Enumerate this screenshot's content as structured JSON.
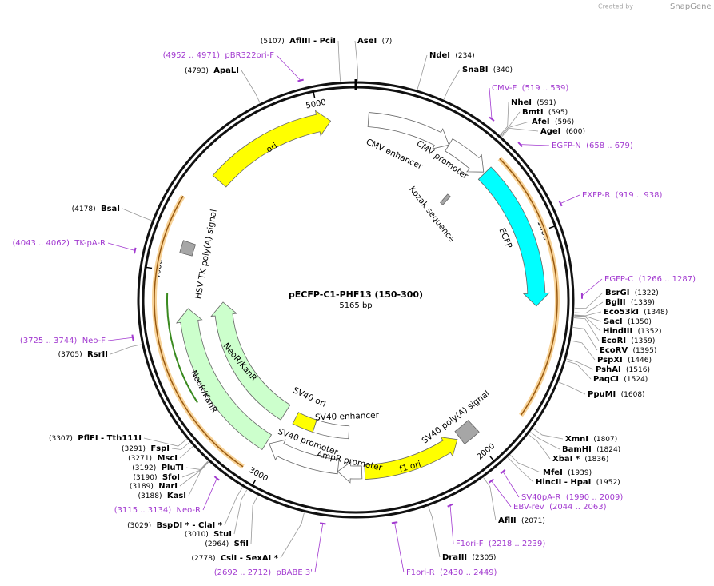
{
  "header": {
    "credit": "Created by",
    "brand": "SnapGene"
  },
  "map": {
    "name": "pECFP-C1-PHF13 (150-300)",
    "length": "5165 bp"
  },
  "ticks": [
    "1000",
    "2000",
    "3000",
    "4000",
    "5000"
  ],
  "sites": [
    {
      "name": "AseI",
      "pos": "(7)"
    },
    {
      "name": "NdeI",
      "pos": "(234)"
    },
    {
      "name": "SnaBI",
      "pos": "(340)"
    },
    {
      "name": "NheI",
      "pos": "(591)"
    },
    {
      "name": "BmtI",
      "pos": "(595)"
    },
    {
      "name": "AfeI",
      "pos": "(596)"
    },
    {
      "name": "AgeI",
      "pos": "(600)"
    },
    {
      "name": "BsrGI",
      "pos": "(1322)"
    },
    {
      "name": "BglII",
      "pos": "(1339)"
    },
    {
      "name": "Eco53kI",
      "pos": "(1348)"
    },
    {
      "name": "SacI",
      "pos": "(1350)"
    },
    {
      "name": "HindIII",
      "pos": "(1352)"
    },
    {
      "name": "EcoRI",
      "pos": "(1359)"
    },
    {
      "name": "EcoRV",
      "pos": "(1395)"
    },
    {
      "name": "PspXI",
      "pos": "(1446)"
    },
    {
      "name": "PshAI",
      "pos": "(1516)"
    },
    {
      "name": "PaqCI",
      "pos": "(1524)"
    },
    {
      "name": "PpuMI",
      "pos": "(1608)"
    },
    {
      "name": "XmnI",
      "pos": "(1807)"
    },
    {
      "name": "BamHI",
      "pos": "(1824)"
    },
    {
      "name": "XbaI *",
      "pos": "(1836)"
    },
    {
      "name": "MfeI",
      "pos": "(1939)"
    },
    {
      "name": "HincII - HpaI",
      "pos": "(1952)"
    },
    {
      "name": "AflII",
      "pos": "(2071)"
    },
    {
      "name": "DraIII",
      "pos": "(2305)"
    },
    {
      "name": "CsiI - SexAI *",
      "pos": "(2778)"
    },
    {
      "name": "SfiI",
      "pos": "(2964)"
    },
    {
      "name": "StuI",
      "pos": "(3010)"
    },
    {
      "name": "BspDI * - ClaI *",
      "pos": "(3029)"
    },
    {
      "name": "KasI",
      "pos": "(3188)"
    },
    {
      "name": "NarI",
      "pos": "(3189)"
    },
    {
      "name": "SfoI",
      "pos": "(3190)"
    },
    {
      "name": "PluTI",
      "pos": "(3192)"
    },
    {
      "name": "MscI",
      "pos": "(3271)"
    },
    {
      "name": "FspI",
      "pos": "(3291)"
    },
    {
      "name": "PflFI - Tth111I",
      "pos": "(3307)"
    },
    {
      "name": "RsrII",
      "pos": "(3705)"
    },
    {
      "name": "BsaI",
      "pos": "(4178)"
    },
    {
      "name": "ApaLI",
      "pos": "(4793)"
    },
    {
      "name": "AflIII - PciI",
      "pos": "(5107)"
    }
  ],
  "primers": [
    {
      "name": "CMV-F",
      "range": "(519 .. 539)"
    },
    {
      "name": "EGFP-N",
      "range": "(658 .. 679)"
    },
    {
      "name": "EXFP-R",
      "range": "(919 .. 938)"
    },
    {
      "name": "EGFP-C",
      "range": "(1266 .. 1287)"
    },
    {
      "name": "SV40pA-R",
      "range": "(1990 .. 2009)"
    },
    {
      "name": "EBV-rev",
      "range": "(2044 .. 2063)"
    },
    {
      "name": "F1ori-F",
      "range": "(2218 .. 2239)"
    },
    {
      "name": "F1ori-R",
      "range": "(2430 .. 2449)"
    },
    {
      "name": "pBABE 3'",
      "range": "(2692 .. 2712)"
    },
    {
      "name": "Neo-R",
      "range": "(3115 .. 3134)"
    },
    {
      "name": "Neo-F",
      "range": "(3725 .. 3744)"
    },
    {
      "name": "TK-pA-R",
      "range": "(4043 .. 4062)"
    },
    {
      "name": "pBR322ori-F",
      "range": "(4952 .. 4971)"
    }
  ],
  "features": [
    "ori",
    "CMV enhancer",
    "CMV promoter",
    "Kozak sequence",
    "ECFP",
    "SV40 poly(A) signal",
    "f1 ori",
    "AmpR promoter",
    "SV40 promoter",
    "SV40 enhancer",
    "SV40 ori",
    "NeoR/KanR",
    "NeoR/KanR",
    "HSV TK poly(A) signal"
  ]
}
